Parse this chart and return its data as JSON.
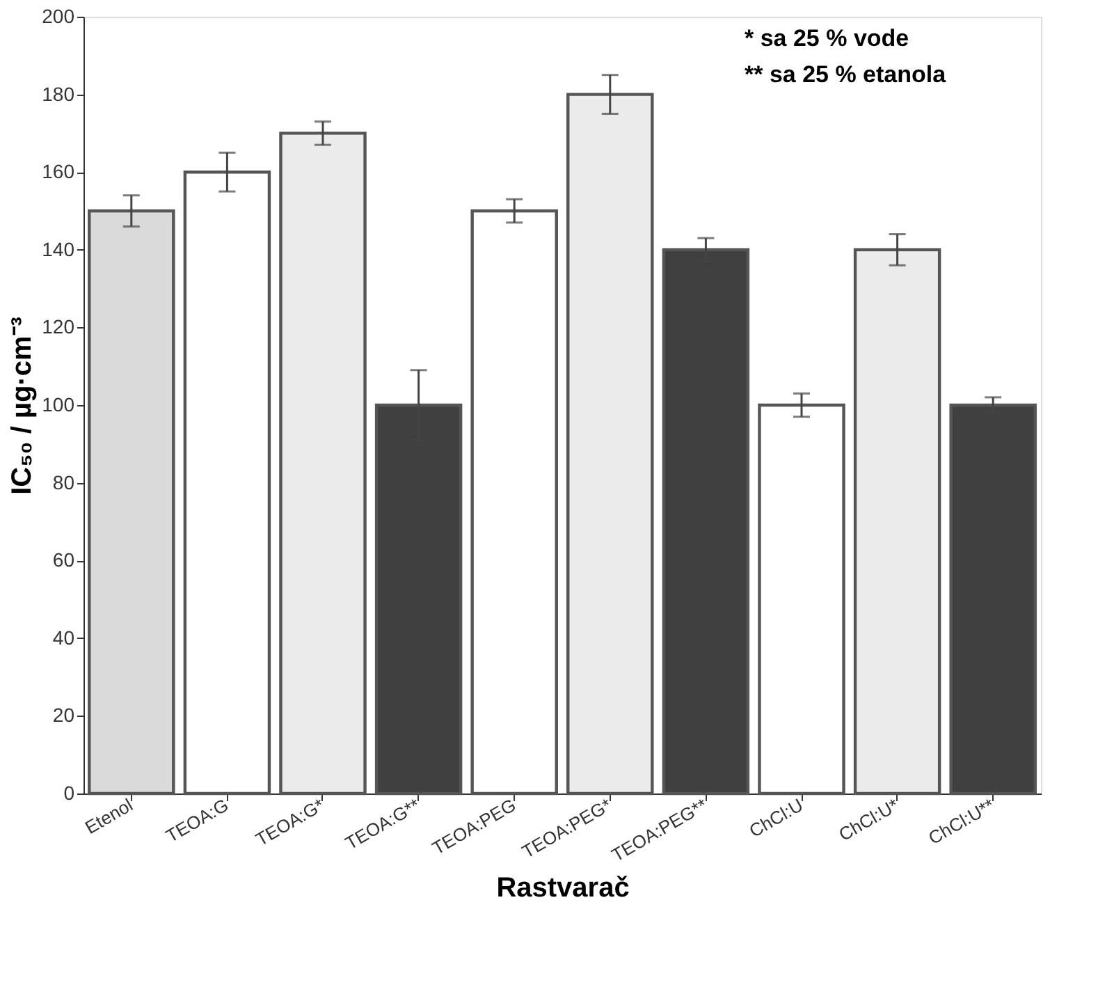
{
  "chart_data": {
    "type": "bar",
    "xlabel": "Rastvarač",
    "ylabel": "IC₅₀ / µg·cm⁻³",
    "categories": [
      "Etenol",
      "TEOA:G",
      "TEOA:G*",
      "TEOA:G**",
      "TEOA:PEG",
      "TEOA:PEG*",
      "TEOA:PEG**",
      "ChCl:U",
      "ChCl:U*",
      "ChCl:U**"
    ],
    "values": [
      150,
      160,
      170,
      100,
      150,
      180,
      140,
      100,
      140,
      100
    ],
    "errors": [
      4,
      5,
      3,
      9,
      3,
      5,
      3,
      3,
      4,
      2
    ],
    "colors": [
      "#dadada",
      "#ffffff",
      "#ebebeb",
      "#404040",
      "#ffffff",
      "#ebebeb",
      "#404040",
      "#ffffff",
      "#ebebeb",
      "#404040"
    ],
    "ylim": [
      0,
      200
    ],
    "yticks": [
      0,
      20,
      40,
      60,
      80,
      100,
      120,
      140,
      160,
      180,
      200
    ],
    "grid": false,
    "annotations": [
      "* sa 25 % vode",
      "** sa 25 % etanola"
    ]
  }
}
